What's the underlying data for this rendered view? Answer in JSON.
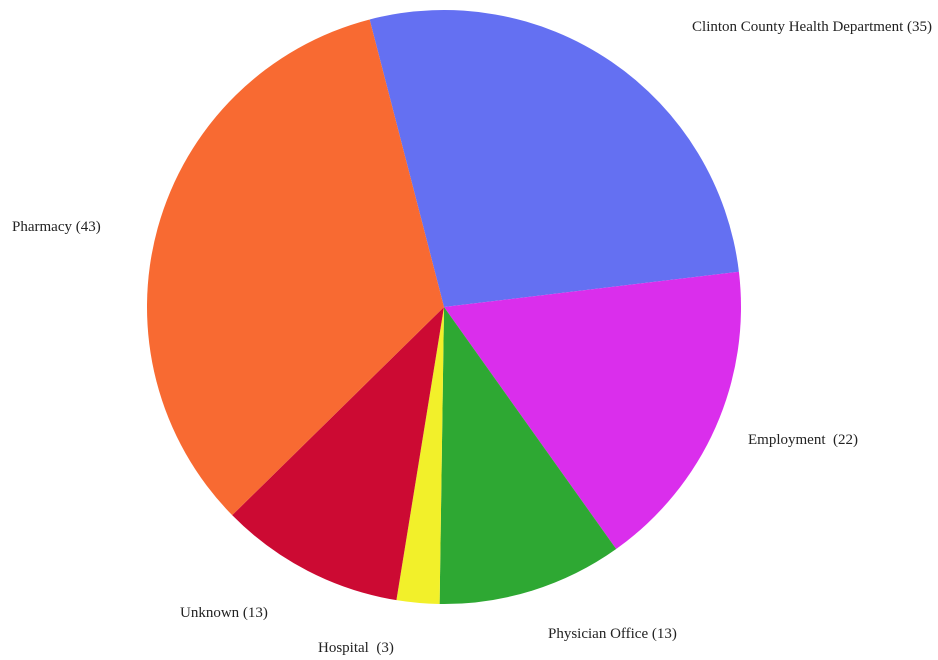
{
  "chart_data": {
    "type": "pie",
    "start_angle_deg": -14.5,
    "direction": "clockwise",
    "legend": "none",
    "slices": [
      {
        "name": "Clinton County Health Department",
        "value": 35,
        "label": "Clinton County Health Department (35)",
        "color": "#6470F2"
      },
      {
        "name": "Employment",
        "value": 22,
        "label": "Employment  (22)",
        "color": "#DA2EEC"
      },
      {
        "name": "Physician Office",
        "value": 13,
        "label": "Physician Office (13)",
        "color": "#2EA833"
      },
      {
        "name": "Hospital",
        "value": 3,
        "label": "Hospital  (3)",
        "color": "#F2F02A"
      },
      {
        "name": "Unknown",
        "value": 13,
        "label": "Unknown (13)",
        "color": "#CC0A33"
      },
      {
        "name": "Pharmacy",
        "value": 43,
        "label": "Pharmacy (43)",
        "color": "#F86A32"
      }
    ]
  }
}
